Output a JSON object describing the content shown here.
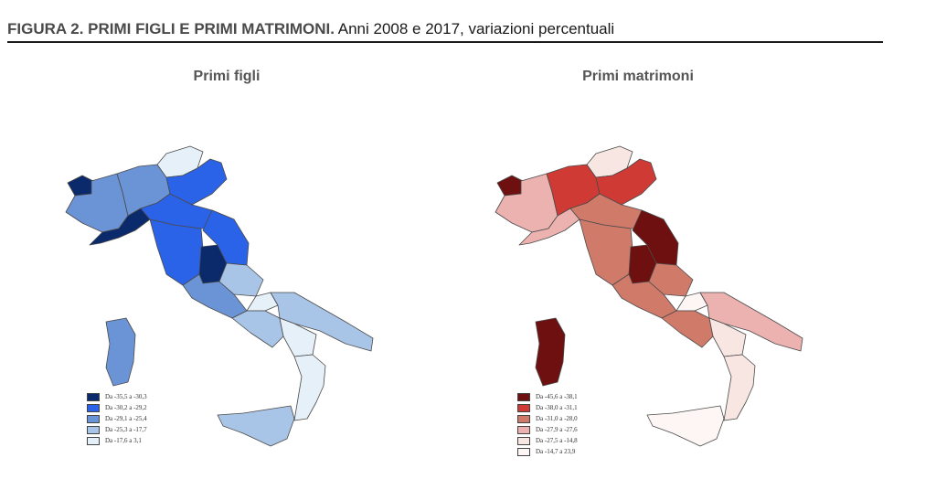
{
  "figure": {
    "title_bold": "FIGURA 2. PRIMI FIGLI E PRIMI MATRIMONI.",
    "title_rest": " Anni 2008 e 2017, variazioni percentuali"
  },
  "maps": [
    {
      "title": "Primi figli",
      "legend": [
        {
          "label": "Da -35,5 a -30,3",
          "color": "#0b2a6b"
        },
        {
          "label": "Da -30,2 a -29,2",
          "color": "#2a62e8"
        },
        {
          "label": "Da -29,1 a -25,4",
          "color": "#6b94d6"
        },
        {
          "label": "Da -25,3 a -17,7",
          "color": "#a8c4e6"
        },
        {
          "label": "Da -17,6 a 3,1",
          "color": "#e6f0f8"
        }
      ]
    },
    {
      "title": "Primi matrimoni",
      "legend": [
        {
          "label": "Da -45,6 a -38,1",
          "color": "#6e0f10"
        },
        {
          "label": "Da -38,0 a -31,1",
          "color": "#d03a34"
        },
        {
          "label": "Da -31,0 a -28,0",
          "color": "#d07a6a"
        },
        {
          "label": "Da -27,9 a -27,6",
          "color": "#ebb2b0"
        },
        {
          "label": "Da -27,5 a -14,8",
          "color": "#f8e6e2"
        },
        {
          "label": "Da -14,7 a 23,9",
          "color": "#fdf6f4"
        }
      ]
    }
  ]
}
